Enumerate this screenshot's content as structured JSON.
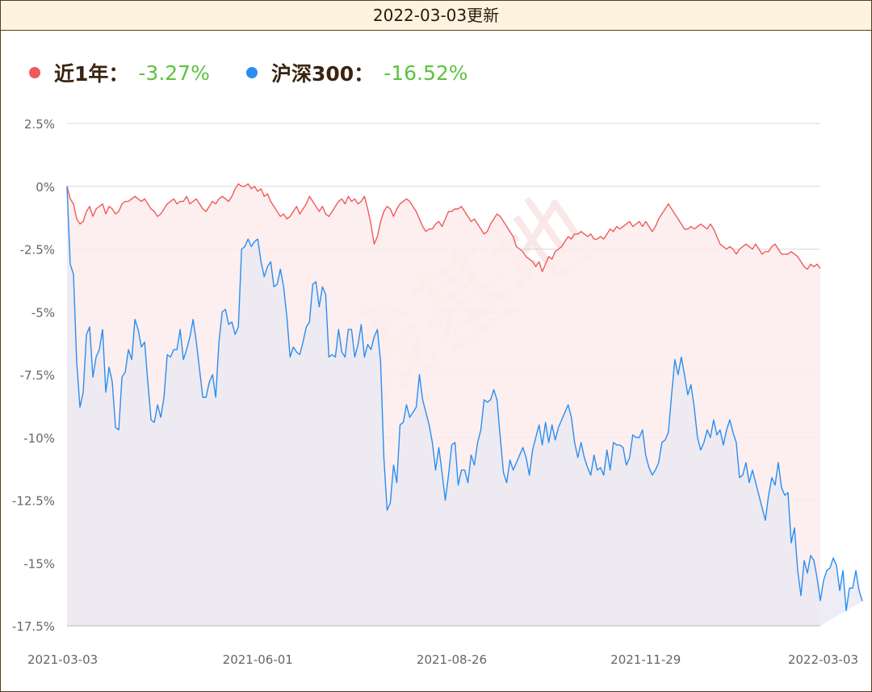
{
  "header": {
    "title": "2022-03-03更新"
  },
  "legend": [
    {
      "name": "近1年：",
      "value": "-3.27%"
    },
    {
      "name": "沪深300：",
      "value": "-16.52%"
    }
  ],
  "watermark": "搞钱基地",
  "colors": {
    "series_fund": "#f05a5a",
    "series_index": "#2a8ef0",
    "value_text": "#5cc33c",
    "fund_fill": "#fdecec",
    "index_fill": "#eae8f2",
    "grid": "#d8d8dc",
    "axis_text": "#666666"
  },
  "chart_data": {
    "type": "area",
    "ylim": [
      -17.5,
      2.5
    ],
    "yticks": [
      2.5,
      0,
      -2.5,
      -5,
      -7.5,
      -10,
      -12.5,
      -15,
      -17.5
    ],
    "ytick_labels": [
      "2.5%",
      "0%",
      "-2.5%",
      "-5%",
      "-7.5%",
      "-10%",
      "-12.5%",
      "-15%",
      "-17.5%"
    ],
    "x_labels": [
      "2021-03-03",
      "2021-06-01",
      "2021-08-26",
      "2021-11-29",
      "2022-03-03"
    ],
    "x_tick_index": [
      0,
      59,
      119,
      179,
      239
    ],
    "grid": true,
    "legend_position": "top-left",
    "series": [
      {
        "name": "近1年",
        "values": [
          0,
          -0.5,
          -0.7,
          -1.3,
          -1.5,
          -1.4,
          -1.0,
          -0.8,
          -1.2,
          -0.9,
          -0.8,
          -0.7,
          -1.1,
          -0.8,
          -0.9,
          -1.1,
          -1.0,
          -0.7,
          -0.6,
          -0.6,
          -0.5,
          -0.4,
          -0.5,
          -0.6,
          -0.5,
          -0.7,
          -0.9,
          -1.0,
          -1.2,
          -1.1,
          -0.9,
          -0.7,
          -0.6,
          -0.5,
          -0.7,
          -0.6,
          -0.6,
          -0.4,
          -0.7,
          -0.6,
          -0.5,
          -0.7,
          -0.9,
          -1.0,
          -0.8,
          -0.6,
          -0.7,
          -0.5,
          -0.4,
          -0.5,
          -0.6,
          -0.4,
          -0.1,
          0.1,
          0.0,
          0.0,
          0.1,
          -0.1,
          0.0,
          -0.2,
          -0.1,
          -0.4,
          -0.3,
          -0.6,
          -0.8,
          -1.0,
          -1.2,
          -1.1,
          -1.3,
          -1.2,
          -1.0,
          -0.8,
          -1.1,
          -0.9,
          -0.7,
          -0.4,
          -0.6,
          -0.8,
          -1.0,
          -0.8,
          -1.1,
          -1.2,
          -1.0,
          -0.8,
          -0.6,
          -0.5,
          -0.7,
          -0.4,
          -0.6,
          -0.5,
          -0.7,
          -0.6,
          -0.4,
          -0.9,
          -1.5,
          -2.3,
          -2.0,
          -1.4,
          -1.0,
          -0.8,
          -0.9,
          -1.2,
          -0.9,
          -0.7,
          -0.6,
          -0.5,
          -0.6,
          -0.8,
          -1.0,
          -1.3,
          -1.6,
          -1.8,
          -1.7,
          -1.7,
          -1.5,
          -1.4,
          -1.6,
          -1.3,
          -1.0,
          -1.0,
          -0.9,
          -0.9,
          -0.8,
          -1.0,
          -1.2,
          -1.4,
          -1.3,
          -1.5,
          -1.7,
          -1.9,
          -1.8,
          -1.5,
          -1.3,
          -1.1,
          -1.2,
          -1.4,
          -1.6,
          -1.8,
          -2.0,
          -2.4,
          -2.5,
          -2.6,
          -2.8,
          -2.9,
          -3.0,
          -3.2,
          -3.0,
          -3.4,
          -3.1,
          -2.8,
          -2.9,
          -2.6,
          -2.5,
          -2.4,
          -2.2,
          -2.0,
          -2.1,
          -1.9,
          -1.9,
          -1.8,
          -1.9,
          -2.0,
          -1.9,
          -2.1,
          -2.1,
          -2.0,
          -2.1,
          -1.9,
          -1.7,
          -1.8,
          -1.6,
          -1.7,
          -1.6,
          -1.5,
          -1.4,
          -1.6,
          -1.5,
          -1.4,
          -1.6,
          -1.4,
          -1.6,
          -1.8,
          -1.6,
          -1.3,
          -1.1,
          -0.9,
          -0.7,
          -0.9,
          -1.1,
          -1.3,
          -1.5,
          -1.7,
          -1.7,
          -1.6,
          -1.7,
          -1.6,
          -1.5,
          -1.6,
          -1.7,
          -1.5,
          -1.7,
          -2.0,
          -2.3,
          -2.4,
          -2.5,
          -2.4,
          -2.5,
          -2.7,
          -2.5,
          -2.4,
          -2.3,
          -2.4,
          -2.5,
          -2.3,
          -2.5,
          -2.7,
          -2.6,
          -2.6,
          -2.4,
          -2.3,
          -2.5,
          -2.7,
          -2.7,
          -2.7,
          -2.6,
          -2.7,
          -2.8,
          -3.0,
          -3.2,
          -3.3,
          -3.1,
          -3.2,
          -3.1,
          -3.27
        ],
        "color": "#f05a5a"
      },
      {
        "name": "沪深300",
        "values": [
          0,
          -3.1,
          -3.5,
          -7.0,
          -8.8,
          -8.2,
          -5.9,
          -5.6,
          -7.6,
          -6.8,
          -6.5,
          -5.7,
          -8.2,
          -7.2,
          -7.8,
          -9.6,
          -9.7,
          -7.6,
          -7.4,
          -6.5,
          -6.9,
          -5.3,
          -5.7,
          -6.4,
          -6.2,
          -7.8,
          -9.3,
          -9.4,
          -8.7,
          -9.2,
          -8.4,
          -6.7,
          -6.8,
          -6.5,
          -6.5,
          -5.7,
          -6.9,
          -6.5,
          -6.0,
          -5.3,
          -6.2,
          -7.3,
          -8.4,
          -8.4,
          -7.8,
          -7.5,
          -8.4,
          -6.2,
          -5.0,
          -4.9,
          -5.5,
          -5.4,
          -5.9,
          -5.6,
          -2.5,
          -2.4,
          -2.1,
          -2.4,
          -2.2,
          -2.1,
          -3.0,
          -3.6,
          -3.2,
          -3.0,
          -4.0,
          -3.9,
          -3.3,
          -4.0,
          -5.2,
          -6.8,
          -6.4,
          -6.6,
          -6.7,
          -6.2,
          -5.6,
          -5.4,
          -3.9,
          -3.8,
          -4.8,
          -4.0,
          -4.3,
          -6.8,
          -6.7,
          -6.8,
          -5.7,
          -6.6,
          -6.8,
          -5.7,
          -5.7,
          -6.8,
          -6.3,
          -5.5,
          -6.8,
          -6.3,
          -6.5,
          -6.0,
          -5.7,
          -7.0,
          -10.8,
          -12.9,
          -12.6,
          -11.1,
          -11.8,
          -9.5,
          -9.4,
          -8.7,
          -9.2,
          -9.0,
          -8.8,
          -7.5,
          -8.5,
          -9.0,
          -9.5,
          -10.2,
          -11.3,
          -10.4,
          -11.4,
          -12.5,
          -11.5,
          -10.3,
          -10.2,
          -11.9,
          -11.3,
          -11.3,
          -11.8,
          -10.7,
          -11.1,
          -10.2,
          -9.7,
          -8.5,
          -8.6,
          -8.5,
          -8.1,
          -8.5,
          -10.0,
          -11.4,
          -11.8,
          -10.9,
          -11.3,
          -11.0,
          -10.7,
          -10.4,
          -10.8,
          -11.5,
          -10.5,
          -10.0,
          -9.5,
          -10.3,
          -9.4,
          -10.2,
          -9.5,
          -10.1,
          -9.6,
          -9.3,
          -9.0,
          -8.7,
          -9.2,
          -10.2,
          -10.8,
          -10.2,
          -10.8,
          -11.2,
          -11.5,
          -10.7,
          -11.3,
          -11.2,
          -11.5,
          -10.5,
          -11.3,
          -10.2,
          -10.3,
          -10.3,
          -10.4,
          -11.1,
          -10.8,
          -9.9,
          -10.0,
          -10.0,
          -9.7,
          -10.7,
          -11.2,
          -11.5,
          -11.3,
          -11.0,
          -10.2,
          -10.1,
          -9.8,
          -8.3,
          -6.9,
          -7.5,
          -6.8,
          -7.5,
          -8.3,
          -7.9,
          -8.8,
          -10.0,
          -10.5,
          -10.2,
          -9.7,
          -10.0,
          -9.3,
          -9.9,
          -9.7,
          -10.3,
          -9.7,
          -9.3,
          -9.8,
          -10.2,
          -11.6,
          -11.5,
          -11.0,
          -11.8,
          -11.3,
          -11.8,
          -12.3,
          -12.8,
          -13.3,
          -12.3,
          -11.6,
          -11.9,
          -11.0,
          -12.0,
          -12.3,
          -12.2,
          -14.2,
          -13.6,
          -15.3,
          -16.3,
          -14.9,
          -15.4,
          -14.7,
          -14.9,
          -15.6,
          -16.5,
          -15.7,
          -15.3,
          -15.2,
          -14.8,
          -15.1,
          -16.1,
          -15.3,
          -16.9,
          -16.0,
          -16.0,
          -15.3,
          -16.1,
          -16.52
        ],
        "color": "#2a8ef0"
      }
    ]
  }
}
